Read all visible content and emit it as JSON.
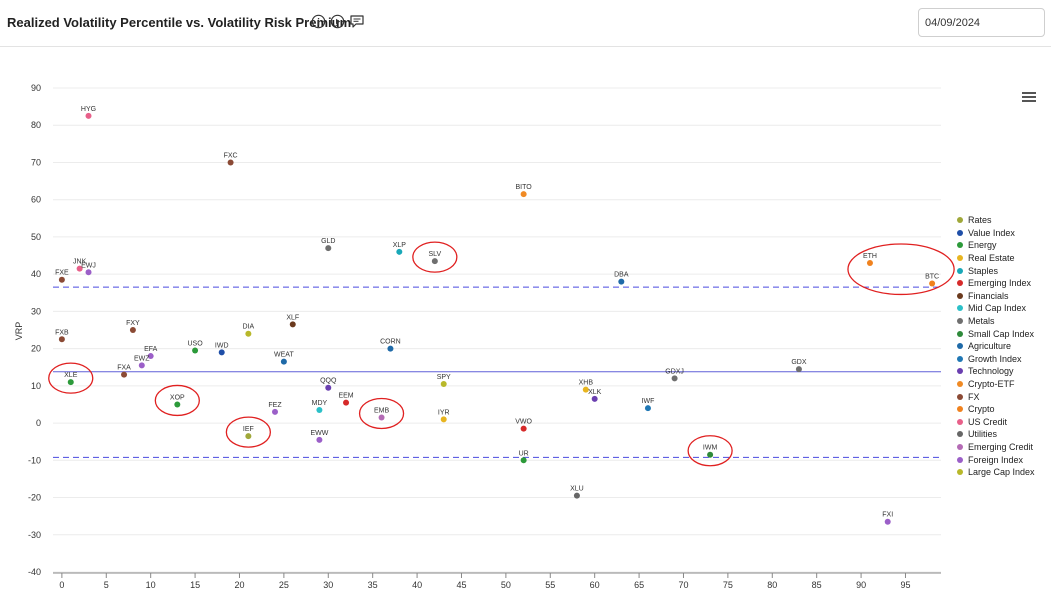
{
  "header": {
    "title": "Realized Volatility Percentile vs. Volatility Risk Premium",
    "date_value": "04/09/2024"
  },
  "icons": {
    "info": "info-icon",
    "play": "play-icon",
    "comment": "comment-icon",
    "menu": "hamburger-menu-icon"
  },
  "chart_data": {
    "type": "scatter",
    "title": "",
    "xlabel": "",
    "ylabel": "VRP",
    "xlim": [
      -1,
      99
    ],
    "ylim": [
      -40,
      90
    ],
    "xticks": [
      0,
      5,
      10,
      15,
      20,
      25,
      30,
      35,
      40,
      45,
      50,
      55,
      60,
      65,
      70,
      75,
      80,
      85,
      90,
      95
    ],
    "yticks": [
      90,
      80,
      70,
      60,
      50,
      40,
      30,
      20,
      10,
      0,
      -10,
      -20,
      -30,
      -40
    ],
    "grid": true,
    "legend_position": "right",
    "reference_lines": [
      {
        "style": "dashed",
        "y": 36.5,
        "color": "#4a4ae0"
      },
      {
        "style": "solid",
        "y": 13.8,
        "color": "#6060d8"
      },
      {
        "style": "dashed",
        "y": -9.2,
        "color": "#4a4ae0"
      }
    ],
    "categories": [
      {
        "name": "Rates",
        "color": "#a0a83a"
      },
      {
        "name": "Value Index",
        "color": "#1f4fa8"
      },
      {
        "name": "Energy",
        "color": "#2c9a3a"
      },
      {
        "name": "Real Estate",
        "color": "#e8b520"
      },
      {
        "name": "Staples",
        "color": "#19a8b8"
      },
      {
        "name": "Emerging Index",
        "color": "#d62a2a"
      },
      {
        "name": "Financials",
        "color": "#6b3a1e"
      },
      {
        "name": "Mid Cap Index",
        "color": "#2bc0c8"
      },
      {
        "name": "Metals",
        "color": "#6f6f6f"
      },
      {
        "name": "Small Cap Index",
        "color": "#2e8a3a"
      },
      {
        "name": "Agriculture",
        "color": "#1f6aa8"
      },
      {
        "name": "Growth Index",
        "color": "#1f77b4"
      },
      {
        "name": "Technology",
        "color": "#6a3fb0"
      },
      {
        "name": "Crypto-ETF",
        "color": "#f08a24"
      },
      {
        "name": "FX",
        "color": "#8b4a35"
      },
      {
        "name": "Crypto",
        "color": "#f0821e"
      },
      {
        "name": "US Credit",
        "color": "#e8608a"
      },
      {
        "name": "Utilities",
        "color": "#666666"
      },
      {
        "name": "Emerging Credit",
        "color": "#b46bb5"
      },
      {
        "name": "Foreign Index",
        "color": "#9b5fc8"
      },
      {
        "name": "Large Cap Index",
        "color": "#b8b82a"
      }
    ],
    "points": [
      {
        "label": "HYG",
        "x": 3,
        "y": 82.5,
        "category": "US Credit"
      },
      {
        "label": "FXC",
        "x": 19,
        "y": 70,
        "category": "FX"
      },
      {
        "label": "BITO",
        "x": 52,
        "y": 61.5,
        "category": "Crypto-ETF"
      },
      {
        "label": "GLD",
        "x": 30,
        "y": 47,
        "category": "Metals"
      },
      {
        "label": "XLP",
        "x": 38,
        "y": 46,
        "category": "Staples"
      },
      {
        "label": "SLV",
        "x": 42,
        "y": 43.5,
        "category": "Metals"
      },
      {
        "label": "ETH",
        "x": 91,
        "y": 43,
        "category": "Crypto"
      },
      {
        "label": "BTC",
        "x": 98,
        "y": 37.5,
        "category": "Crypto"
      },
      {
        "label": "DBA",
        "x": 63,
        "y": 38,
        "category": "Agriculture"
      },
      {
        "label": "JNK",
        "x": 2,
        "y": 41.5,
        "category": "US Credit"
      },
      {
        "label": "EWJ",
        "x": 3,
        "y": 40.5,
        "category": "Foreign Index"
      },
      {
        "label": "FXE",
        "x": 0,
        "y": 38.5,
        "category": "FX"
      },
      {
        "label": "FXB",
        "x": 0,
        "y": 22.5,
        "category": "FX"
      },
      {
        "label": "FXY",
        "x": 8,
        "y": 25,
        "category": "FX"
      },
      {
        "label": "XLF",
        "x": 26,
        "y": 26.5,
        "category": "Financials"
      },
      {
        "label": "DIA",
        "x": 21,
        "y": 24,
        "category": "Large Cap Index"
      },
      {
        "label": "USO",
        "x": 15,
        "y": 19.5,
        "category": "Energy"
      },
      {
        "label": "IWD",
        "x": 18,
        "y": 19,
        "category": "Value Index"
      },
      {
        "label": "CORN",
        "x": 37,
        "y": 20,
        "category": "Agriculture"
      },
      {
        "label": "EFA",
        "x": 10,
        "y": 18,
        "category": "Foreign Index"
      },
      {
        "label": "EWZ",
        "x": 9,
        "y": 15.5,
        "category": "Foreign Index"
      },
      {
        "label": "WEAT",
        "x": 25,
        "y": 16.5,
        "category": "Agriculture"
      },
      {
        "label": "FXA",
        "x": 7,
        "y": 13,
        "category": "FX"
      },
      {
        "label": "XLE",
        "x": 1,
        "y": 11,
        "category": "Energy"
      },
      {
        "label": "GDX",
        "x": 83,
        "y": 14.5,
        "category": "Metals"
      },
      {
        "label": "GDXJ",
        "x": 69,
        "y": 12,
        "category": "Metals"
      },
      {
        "label": "SPY",
        "x": 43,
        "y": 10.5,
        "category": "Large Cap Index"
      },
      {
        "label": "QQQ",
        "x": 30,
        "y": 9.5,
        "category": "Technology"
      },
      {
        "label": "XHB",
        "x": 59,
        "y": 9,
        "category": "Real Estate"
      },
      {
        "label": "XLK",
        "x": 60,
        "y": 6.5,
        "category": "Technology"
      },
      {
        "label": "EEM",
        "x": 32,
        "y": 5.5,
        "category": "Emerging Index"
      },
      {
        "label": "XOP",
        "x": 13,
        "y": 5,
        "category": "Energy"
      },
      {
        "label": "IWF",
        "x": 66,
        "y": 4,
        "category": "Growth Index"
      },
      {
        "label": "MDY",
        "x": 29,
        "y": 3.5,
        "category": "Mid Cap Index"
      },
      {
        "label": "FEZ",
        "x": 24,
        "y": 3,
        "category": "Foreign Index"
      },
      {
        "label": "EMB",
        "x": 36,
        "y": 1.5,
        "category": "Emerging Credit"
      },
      {
        "label": "IYR",
        "x": 43,
        "y": 1,
        "category": "Real Estate"
      },
      {
        "label": "VWO",
        "x": 52,
        "y": -1.5,
        "category": "Emerging Index"
      },
      {
        "label": "IEF",
        "x": 21,
        "y": -3.5,
        "category": "Rates"
      },
      {
        "label": "EWW",
        "x": 29,
        "y": -4.5,
        "category": "Foreign Index"
      },
      {
        "label": "IWM",
        "x": 73,
        "y": -8.5,
        "category": "Small Cap Index"
      },
      {
        "label": "UR",
        "x": 52,
        "y": -10,
        "category": "Energy"
      },
      {
        "label": "XLU",
        "x": 58,
        "y": -19.5,
        "category": "Utilities"
      },
      {
        "label": "FXI",
        "x": 93,
        "y": -26.5,
        "category": "Foreign Index"
      }
    ],
    "annotations": [
      "SLV",
      "ETH",
      "BTC",
      "XLE",
      "XOP",
      "IEF",
      "EMB",
      "IWM"
    ]
  }
}
